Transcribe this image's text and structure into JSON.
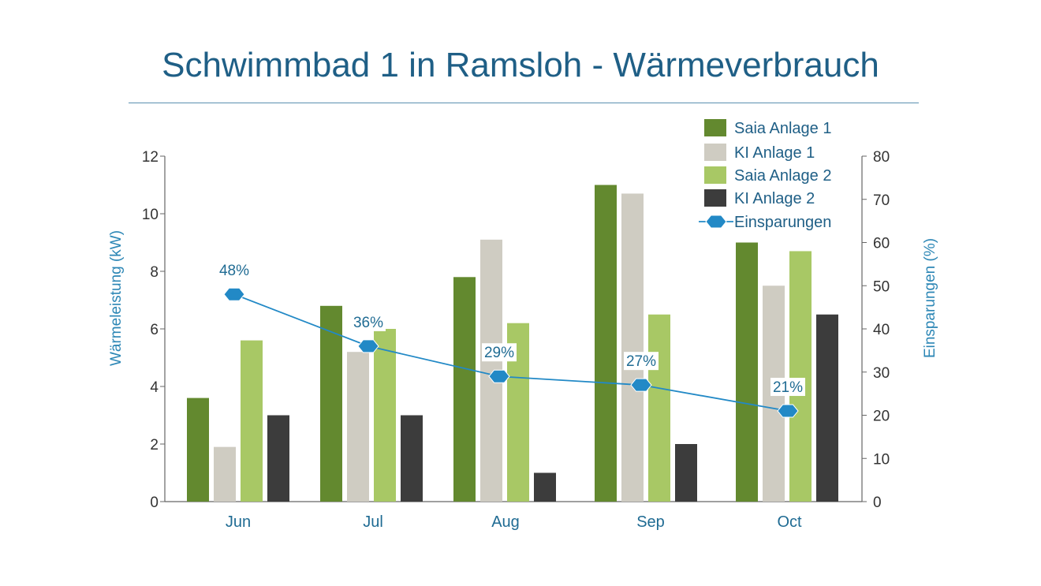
{
  "chart_data": {
    "type": "bar",
    "title": "Schwimmbad 1 in Ramsloh - Wärmeverbrauch",
    "ylabel": "Wärmeleistung (kW)",
    "y2label": "Einsparungen (%)",
    "ylim": [
      0,
      12
    ],
    "y2lim": [
      0,
      80
    ],
    "yticks": [
      0,
      2,
      4,
      6,
      8,
      10,
      12
    ],
    "y2ticks": [
      0,
      10,
      20,
      30,
      40,
      50,
      60,
      70,
      80
    ],
    "categories": [
      "Jun",
      "Jul",
      "Aug",
      "Sep",
      "Oct"
    ],
    "series": [
      {
        "name": "Saia Anlage 1",
        "color": "#63892f",
        "values": [
          3.6,
          6.8,
          7.8,
          11.0,
          9.0
        ]
      },
      {
        "name": "KI Anlage 1",
        "color": "#cfccc2",
        "values": [
          1.9,
          5.2,
          9.1,
          10.7,
          7.5
        ]
      },
      {
        "name": "Saia Anlage 2",
        "color": "#a8c865",
        "values": [
          5.6,
          6.0,
          6.2,
          6.5,
          8.7
        ]
      },
      {
        "name": "KI Anlage 2",
        "color": "#3c3c3c",
        "values": [
          3.0,
          3.0,
          1.0,
          2.0,
          6.5
        ]
      }
    ],
    "line": {
      "name": "Einsparungen",
      "color": "#2289c6",
      "values": [
        48,
        36,
        29,
        27,
        21
      ],
      "labels": [
        "48%",
        "36%",
        "29%",
        "27%",
        "21%"
      ]
    },
    "legend_position": "top-right",
    "grid": false
  }
}
